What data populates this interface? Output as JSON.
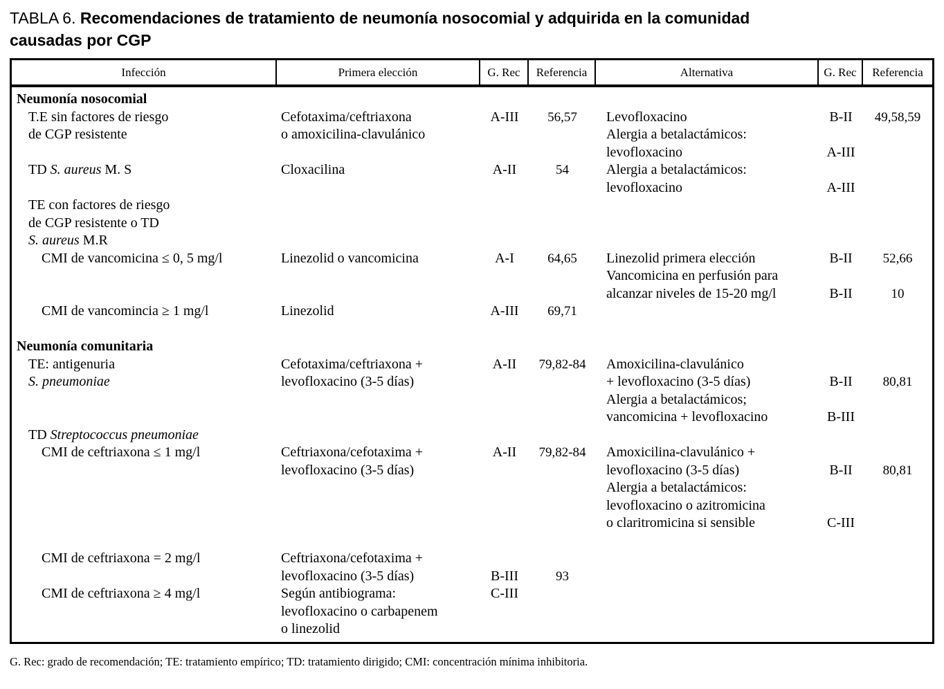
{
  "title": {
    "label": "TABLA 6.",
    "line1": "Recomendaciones de tratamiento de neumonía nosocomial y adquirida en la comunidad",
    "line2": "causadas por CGP"
  },
  "table": {
    "columns": [
      "Infección",
      "Primera elección",
      "G. Rec",
      "Referencia",
      "Alternativa",
      "G. Rec",
      "Referencia"
    ],
    "lines": [
      {
        "cells": [
          "Neumonía nosocomial",
          "",
          "",
          "",
          "",
          "",
          ""
        ],
        "indent": 0,
        "bold": true
      },
      {
        "cells": [
          "T.E sin factores de riesgo",
          "Cefotaxima/ceftriaxona",
          "A-III",
          "56,57",
          "Levofloxacino",
          "B-II",
          "49,58,59"
        ],
        "indent": 1
      },
      {
        "cells": [
          "de CGP resistente",
          "o amoxicilina-clavulánico",
          "",
          "",
          "Alergia a betalactámicos:",
          "",
          ""
        ],
        "indent": 1
      },
      {
        "cells": [
          "",
          "",
          "",
          "",
          "levofloxacino",
          "A-III",
          ""
        ],
        "indent": 0
      },
      {
        "cells": [
          "TD *S. aureus* M. S",
          "Cloxacilina",
          "A-II",
          "54",
          "Alergia a betalactámicos:",
          "",
          ""
        ],
        "indent": 1
      },
      {
        "cells": [
          "",
          "",
          "",
          "",
          "levofloxacino",
          "A-III",
          ""
        ],
        "indent": 0
      },
      {
        "cells": [
          "TE con factores de riesgo",
          "",
          "",
          "",
          "",
          "",
          ""
        ],
        "indent": 1
      },
      {
        "cells": [
          "de CGP resistente o TD",
          "",
          "",
          "",
          "",
          "",
          ""
        ],
        "indent": 1
      },
      {
        "cells": [
          "*S. aureus* M.R",
          "",
          "",
          "",
          "",
          "",
          ""
        ],
        "indent": 1
      },
      {
        "cells": [
          "CMI de vancomicina ≤ 0, 5 mg/l",
          "Linezolid o vancomicina",
          "A-I",
          "64,65",
          "Linezolid primera elección",
          "B-II",
          "52,66"
        ],
        "indent": 2
      },
      {
        "cells": [
          "",
          "",
          "",
          "",
          "Vancomicina en perfusión para",
          "",
          ""
        ],
        "indent": 0
      },
      {
        "cells": [
          "",
          "",
          "",
          "",
          "alcanzar niveles de 15-20 mg/l",
          "B-II",
          "10"
        ],
        "indent": 0
      },
      {
        "cells": [
          "CMI de vancomincia ≥ 1 mg/l",
          "Linezolid",
          "A-III",
          "69,71",
          "",
          "",
          ""
        ],
        "indent": 2
      },
      {
        "cells": [
          "",
          "",
          "",
          "",
          "",
          "",
          ""
        ],
        "indent": 0
      },
      {
        "cells": [
          "Neumonía comunitaria",
          "",
          "",
          "",
          "",
          "",
          ""
        ],
        "indent": 0,
        "bold": true
      },
      {
        "cells": [
          "TE: antigenuria",
          "Cefotaxima/ceftriaxona +",
          "A-II",
          "79,82-84",
          "Amoxicilina-clavulánico",
          "",
          ""
        ],
        "indent": 1
      },
      {
        "cells": [
          "*S. pneumoniae*",
          "levofloxacino (3-5 días)",
          "",
          "",
          "+ levofloxacino (3-5 días)",
          "B-II",
          "80,81"
        ],
        "indent": 1
      },
      {
        "cells": [
          "",
          "",
          "",
          "",
          "Alergia a betalactámicos;",
          "",
          ""
        ],
        "indent": 0
      },
      {
        "cells": [
          "",
          "",
          "",
          "",
          "vancomicina + levofloxacino",
          "B-III",
          ""
        ],
        "indent": 0
      },
      {
        "cells": [
          "TD *Streptococcus pneumoniae*",
          "",
          "",
          "",
          "",
          "",
          ""
        ],
        "indent": 1
      },
      {
        "cells": [
          "CMI de ceftriaxona ≤ 1 mg/l",
          "Ceftriaxona/cefotaxima +",
          "A-II",
          "79,82-84",
          "Amoxicilina-clavulánico +",
          "",
          ""
        ],
        "indent": 2
      },
      {
        "cells": [
          "",
          "levofloxacino (3-5 días)",
          "",
          "",
          "levofloxacino (3-5 días)",
          "B-II",
          "80,81"
        ],
        "indent": 0
      },
      {
        "cells": [
          "",
          "",
          "",
          "",
          "Alergia a betalactámicos:",
          "",
          ""
        ],
        "indent": 0
      },
      {
        "cells": [
          "",
          "",
          "",
          "",
          "levofloxacino o azitromicina",
          "",
          ""
        ],
        "indent": 0
      },
      {
        "cells": [
          "",
          "",
          "",
          "",
          "o claritromicina si sensible",
          "C-III",
          ""
        ],
        "indent": 0
      },
      {
        "cells": [
          "",
          "",
          "",
          "",
          "",
          "",
          ""
        ],
        "indent": 0
      },
      {
        "cells": [
          "CMI de ceftriaxona = 2 mg/l",
          "Ceftriaxona/cefotaxima +",
          "",
          "",
          "",
          "",
          ""
        ],
        "indent": 2
      },
      {
        "cells": [
          "",
          "levofloxacino (3-5 días)",
          "B-III",
          "93",
          "",
          "",
          ""
        ],
        "indent": 0
      },
      {
        "cells": [
          "CMI de ceftriaxona ≥ 4 mg/l",
          "Según antibiograma:",
          "C-III",
          "",
          "",
          "",
          ""
        ],
        "indent": 2
      },
      {
        "cells": [
          "",
          "levofloxacino o carbapenem",
          "",
          "",
          "",
          "",
          ""
        ],
        "indent": 0
      },
      {
        "cells": [
          "",
          "o linezolid",
          "",
          "",
          "",
          "",
          ""
        ],
        "indent": 0
      }
    ]
  },
  "footnote": "G. Rec: grado de recomendación; TE: tratamiento empírico; TD: tratamiento dirigido; CMI: concentración mínima inhibitoria."
}
